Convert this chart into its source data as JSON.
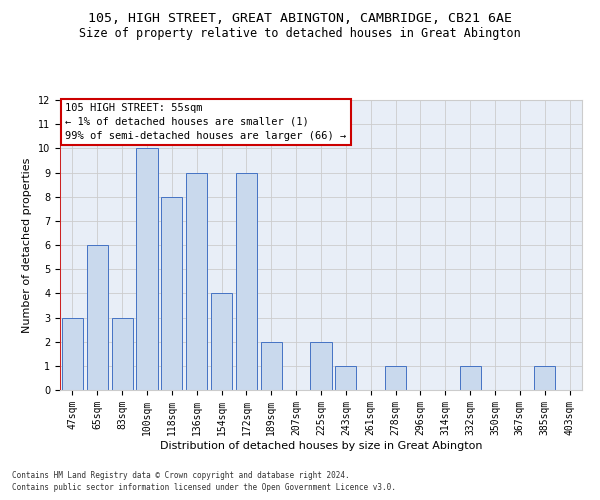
{
  "title1": "105, HIGH STREET, GREAT ABINGTON, CAMBRIDGE, CB21 6AE",
  "title2": "Size of property relative to detached houses in Great Abington",
  "xlabel": "Distribution of detached houses by size in Great Abington",
  "ylabel": "Number of detached properties",
  "footnote1": "Contains HM Land Registry data © Crown copyright and database right 2024.",
  "footnote2": "Contains public sector information licensed under the Open Government Licence v3.0.",
  "annotation_title": "105 HIGH STREET: 55sqm",
  "annotation_line2": "← 1% of detached houses are smaller (1)",
  "annotation_line3": "99% of semi-detached houses are larger (66) →",
  "categories": [
    "47sqm",
    "65sqm",
    "83sqm",
    "100sqm",
    "118sqm",
    "136sqm",
    "154sqm",
    "172sqm",
    "189sqm",
    "207sqm",
    "225sqm",
    "243sqm",
    "261sqm",
    "278sqm",
    "296sqm",
    "314sqm",
    "332sqm",
    "350sqm",
    "367sqm",
    "385sqm",
    "403sqm"
  ],
  "values": [
    3,
    6,
    3,
    10,
    8,
    9,
    4,
    9,
    2,
    0,
    2,
    1,
    0,
    1,
    0,
    0,
    1,
    0,
    0,
    1,
    0
  ],
  "bar_color": "#c9d9ed",
  "bar_edge_color": "#4472c4",
  "annotation_box_color": "#ffffff",
  "annotation_box_edge_color": "#cc0000",
  "ylim": [
    0,
    12
  ],
  "yticks": [
    0,
    1,
    2,
    3,
    4,
    5,
    6,
    7,
    8,
    9,
    10,
    11,
    12
  ],
  "grid_color": "#cccccc",
  "bg_color": "#e8eef7",
  "title_fontsize": 9.5,
  "subtitle_fontsize": 8.5,
  "axis_label_fontsize": 8,
  "tick_fontsize": 7,
  "annotation_fontsize": 7.5,
  "footnote_fontsize": 5.5
}
